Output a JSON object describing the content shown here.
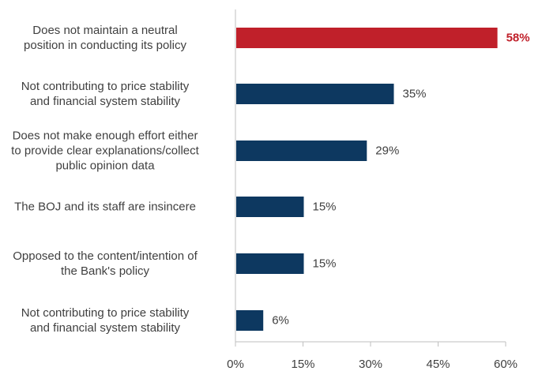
{
  "chart_data": {
    "type": "bar",
    "orientation": "horizontal",
    "categories": [
      "Does not maintain a neutral\nposition in conducting its policy",
      "Not contributing to price stability\nand financial system stability",
      "Does not make enough effort either\nto provide clear explanations/collect\npublic opinion data",
      "The BOJ and its staff are insincere",
      "Opposed to the content/intention of\nthe Bank's policy",
      "Not contributing to price stability\nand financial system stability"
    ],
    "values": [
      58,
      35,
      29,
      15,
      15,
      6
    ],
    "value_labels": [
      "58%",
      "35%",
      "29%",
      "15%",
      "15%",
      "6%"
    ],
    "highlight_index": 0,
    "xlim": [
      0,
      60
    ],
    "xticks": [
      0,
      15,
      30,
      45,
      60
    ],
    "xtick_labels": [
      "0%",
      "15%",
      "30%",
      "45%",
      "60%"
    ],
    "title": "",
    "xlabel": "",
    "ylabel": "",
    "grid": false,
    "colors": {
      "bar": "#0d3860",
      "highlight_bar": "#c0202a",
      "highlight_label": "#c0202a",
      "axis": "#bfbfbf",
      "text": "#404040"
    }
  }
}
